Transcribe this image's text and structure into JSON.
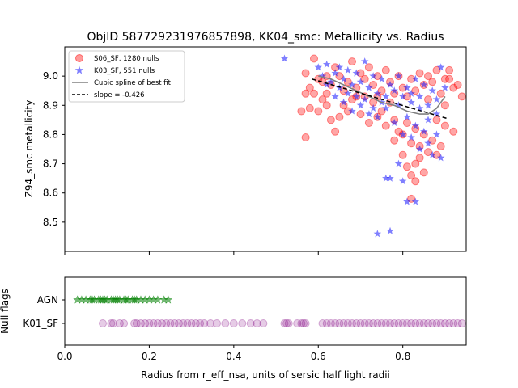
{
  "chart_data": [
    {
      "type": "scatter",
      "title": "ObjID 587729231976857898, KK04_smc: Metallicity vs. Radius",
      "xlabel": "",
      "ylabel": "Z94_smc metallicity",
      "xlim": [
        0.0,
        0.95
      ],
      "ylim": [
        8.4,
        9.1
      ],
      "yticks": [
        "8.5",
        "8.6",
        "8.7",
        "8.8",
        "8.9",
        "9.0"
      ],
      "grid": false,
      "legend_position": "top-left",
      "legend": [
        {
          "label": "S06_SF, 1280 nulls",
          "marker": "circle",
          "color": "#ff0000"
        },
        {
          "label": "K03_SF, 551 nulls",
          "marker": "star",
          "color": "#0000ff"
        },
        {
          "label": "Cubic spline of best fit",
          "marker": "line",
          "color": "#808080"
        },
        {
          "label": "slope = -0.426",
          "marker": "dashed-line",
          "color": "#000000"
        }
      ],
      "series": [
        {
          "name": "S06_SF, 1280 nulls",
          "marker": "circle",
          "color": "#ff0000",
          "points": [
            [
              0.57,
              9.01
            ],
            [
              0.58,
              8.96
            ],
            [
              0.59,
              9.06
            ],
            [
              0.6,
              8.99
            ],
            [
              0.61,
              8.98
            ],
            [
              0.62,
              9.0
            ],
            [
              0.63,
              8.97
            ],
            [
              0.64,
              9.03
            ],
            [
              0.65,
              9.0
            ],
            [
              0.66,
              8.95
            ],
            [
              0.67,
              8.98
            ],
            [
              0.68,
              9.05
            ],
            [
              0.69,
              8.96
            ],
            [
              0.7,
              9.01
            ],
            [
              0.71,
              8.99
            ],
            [
              0.72,
              9.03
            ],
            [
              0.73,
              8.97
            ],
            [
              0.74,
              9.0
            ],
            [
              0.75,
              8.95
            ],
            [
              0.76,
              9.02
            ],
            [
              0.77,
              8.98
            ],
            [
              0.78,
              8.94
            ],
            [
              0.79,
              9.0
            ],
            [
              0.8,
              8.96
            ],
            [
              0.81,
              8.93
            ],
            [
              0.82,
              8.99
            ],
            [
              0.83,
              8.95
            ],
            [
              0.84,
              9.01
            ],
            [
              0.85,
              8.97
            ],
            [
              0.86,
              8.92
            ],
            [
              0.87,
              8.98
            ],
            [
              0.88,
              9.02
            ],
            [
              0.89,
              8.94
            ],
            [
              0.9,
              8.99
            ],
            [
              0.91,
              9.02
            ],
            [
              0.92,
              8.96
            ],
            [
              0.93,
              8.97
            ],
            [
              0.94,
              8.93
            ],
            [
              0.58,
              8.89
            ],
            [
              0.6,
              8.88
            ],
            [
              0.62,
              8.9
            ],
            [
              0.63,
              8.85
            ],
            [
              0.65,
              8.86
            ],
            [
              0.67,
              8.88
            ],
            [
              0.7,
              8.87
            ],
            [
              0.72,
              8.84
            ],
            [
              0.74,
              8.86
            ],
            [
              0.76,
              8.83
            ],
            [
              0.78,
              8.78
            ],
            [
              0.79,
              8.81
            ],
            [
              0.8,
              8.8
            ],
            [
              0.81,
              8.84
            ],
            [
              0.82,
              8.77
            ],
            [
              0.83,
              8.82
            ],
            [
              0.84,
              8.76
            ],
            [
              0.85,
              8.8
            ],
            [
              0.86,
              8.74
            ],
            [
              0.87,
              8.78
            ],
            [
              0.88,
              8.73
            ],
            [
              0.89,
              8.76
            ],
            [
              0.9,
              8.83
            ],
            [
              0.92,
              8.81
            ],
            [
              0.57,
              8.94
            ],
            [
              0.61,
              8.92
            ],
            [
              0.64,
              8.81
            ],
            [
              0.66,
              8.9
            ],
            [
              0.69,
              8.93
            ],
            [
              0.73,
              8.91
            ],
            [
              0.75,
              8.88
            ],
            [
              0.77,
              8.91
            ],
            [
              0.8,
              8.73
            ],
            [
              0.81,
              8.69
            ],
            [
              0.82,
              8.66
            ],
            [
              0.82,
              8.58
            ],
            [
              0.83,
              8.64
            ],
            [
              0.85,
              8.67
            ],
            [
              0.56,
              8.88
            ],
            [
              0.57,
              8.79
            ],
            [
              0.59,
              8.94
            ],
            [
              0.62,
              8.94
            ],
            [
              0.68,
              8.92
            ],
            [
              0.71,
              8.93
            ],
            [
              0.74,
              8.93
            ],
            [
              0.78,
              8.85
            ],
            [
              0.83,
              8.7
            ],
            [
              0.84,
              8.72
            ],
            [
              0.88,
              8.85
            ],
            [
              0.9,
              8.9
            ],
            [
              0.91,
              8.99
            ],
            [
              0.86,
              9.0
            ]
          ]
        },
        {
          "name": "K03_SF, 551 nulls",
          "marker": "star",
          "color": "#0000ff",
          "points": [
            [
              0.52,
              9.06
            ],
            [
              0.6,
              9.03
            ],
            [
              0.61,
              9.0
            ],
            [
              0.62,
              9.04
            ],
            [
              0.63,
              8.98
            ],
            [
              0.64,
              9.01
            ],
            [
              0.65,
              9.03
            ],
            [
              0.66,
              8.99
            ],
            [
              0.67,
              9.02
            ],
            [
              0.68,
              8.97
            ],
            [
              0.69,
              9.01
            ],
            [
              0.7,
              8.98
            ],
            [
              0.71,
              9.05
            ],
            [
              0.72,
              8.96
            ],
            [
              0.73,
              9.0
            ],
            [
              0.74,
              8.94
            ],
            [
              0.75,
              8.99
            ],
            [
              0.76,
              8.93
            ],
            [
              0.77,
              8.97
            ],
            [
              0.78,
              8.95
            ],
            [
              0.79,
              9.0
            ],
            [
              0.8,
              8.93
            ],
            [
              0.81,
              8.96
            ],
            [
              0.82,
              8.91
            ],
            [
              0.83,
              8.99
            ],
            [
              0.84,
              8.93
            ],
            [
              0.85,
              8.97
            ],
            [
              0.86,
              8.9
            ],
            [
              0.87,
              8.95
            ],
            [
              0.88,
              8.92
            ],
            [
              0.89,
              9.03
            ],
            [
              0.9,
              8.96
            ],
            [
              0.66,
              8.91
            ],
            [
              0.68,
              8.88
            ],
            [
              0.7,
              8.9
            ],
            [
              0.72,
              8.87
            ],
            [
              0.74,
              8.86
            ],
            [
              0.76,
              8.89
            ],
            [
              0.78,
              8.84
            ],
            [
              0.8,
              8.8
            ],
            [
              0.81,
              8.86
            ],
            [
              0.82,
              8.79
            ],
            [
              0.83,
              8.83
            ],
            [
              0.84,
              8.75
            ],
            [
              0.85,
              8.81
            ],
            [
              0.86,
              8.77
            ],
            [
              0.87,
              8.73
            ],
            [
              0.88,
              8.8
            ],
            [
              0.89,
              8.72
            ],
            [
              0.76,
              8.65
            ],
            [
              0.77,
              8.65
            ],
            [
              0.8,
              8.64
            ],
            [
              0.81,
              8.57
            ],
            [
              0.83,
              8.57
            ],
            [
              0.74,
              8.46
            ],
            [
              0.77,
              8.47
            ],
            [
              0.64,
              8.93
            ],
            [
              0.67,
              8.94
            ],
            [
              0.69,
              8.93
            ],
            [
              0.71,
              8.92
            ],
            [
              0.73,
              8.89
            ],
            [
              0.75,
              8.91
            ],
            [
              0.79,
              8.9
            ],
            [
              0.82,
              8.94
            ],
            [
              0.84,
              8.89
            ],
            [
              0.86,
              8.85
            ],
            [
              0.88,
              8.87
            ],
            [
              0.62,
              8.97
            ],
            [
              0.65,
              8.96
            ],
            [
              0.79,
              8.7
            ]
          ]
        },
        {
          "name": "Cubic spline of best fit",
          "marker": "line",
          "color": "#808080",
          "points": [
            [
              0.6,
              9.0
            ],
            [
              0.63,
              8.99
            ],
            [
              0.66,
              8.97
            ],
            [
              0.69,
              8.95
            ],
            [
              0.72,
              8.93
            ],
            [
              0.75,
              8.91
            ],
            [
              0.78,
              8.9
            ],
            [
              0.81,
              8.88
            ],
            [
              0.84,
              8.87
            ],
            [
              0.86,
              8.87
            ],
            [
              0.88,
              8.89
            ],
            [
              0.9,
              8.93
            ]
          ]
        },
        {
          "name": "slope = -0.426",
          "marker": "dashed-line",
          "color": "#000000",
          "points": [
            [
              0.585,
              8.99
            ],
            [
              0.905,
              8.855
            ]
          ]
        }
      ]
    },
    {
      "type": "scatter",
      "xlabel": "Radius from r_eff_nsa, units of sersic half light radii",
      "ylabel": "Null flags",
      "xlim": [
        0.0,
        0.95
      ],
      "xticks": [
        "0.0",
        "0.2",
        "0.4",
        "0.6",
        "0.8"
      ],
      "categories": [
        "K01_SF",
        "AGN"
      ],
      "series": [
        {
          "name": "AGN",
          "marker": "star",
          "color": "#008000",
          "x": [
            0.03,
            0.04,
            0.05,
            0.06,
            0.065,
            0.07,
            0.08,
            0.085,
            0.09,
            0.095,
            0.1,
            0.11,
            0.115,
            0.12,
            0.125,
            0.13,
            0.14,
            0.145,
            0.15,
            0.16,
            0.165,
            0.17,
            0.18,
            0.19,
            0.2,
            0.21,
            0.22,
            0.235,
            0.245
          ]
        },
        {
          "name": "K01_SF",
          "marker": "circle",
          "color": "#800080",
          "x": [
            0.09,
            0.11,
            0.115,
            0.13,
            0.14,
            0.165,
            0.17,
            0.18,
            0.19,
            0.2,
            0.21,
            0.22,
            0.23,
            0.24,
            0.25,
            0.26,
            0.27,
            0.28,
            0.29,
            0.3,
            0.31,
            0.32,
            0.33,
            0.345,
            0.36,
            0.38,
            0.4,
            0.42,
            0.44,
            0.455,
            0.47,
            0.52,
            0.525,
            0.53,
            0.55,
            0.56,
            0.565,
            0.57,
            0.61,
            0.62,
            0.63,
            0.64,
            0.65,
            0.66,
            0.67,
            0.68,
            0.69,
            0.7,
            0.71,
            0.72,
            0.73,
            0.74,
            0.75,
            0.76,
            0.77,
            0.78,
            0.79,
            0.8,
            0.81,
            0.82,
            0.83,
            0.84,
            0.85,
            0.86,
            0.87,
            0.88,
            0.89,
            0.9,
            0.91,
            0.92,
            0.93,
            0.94
          ]
        }
      ]
    }
  ]
}
